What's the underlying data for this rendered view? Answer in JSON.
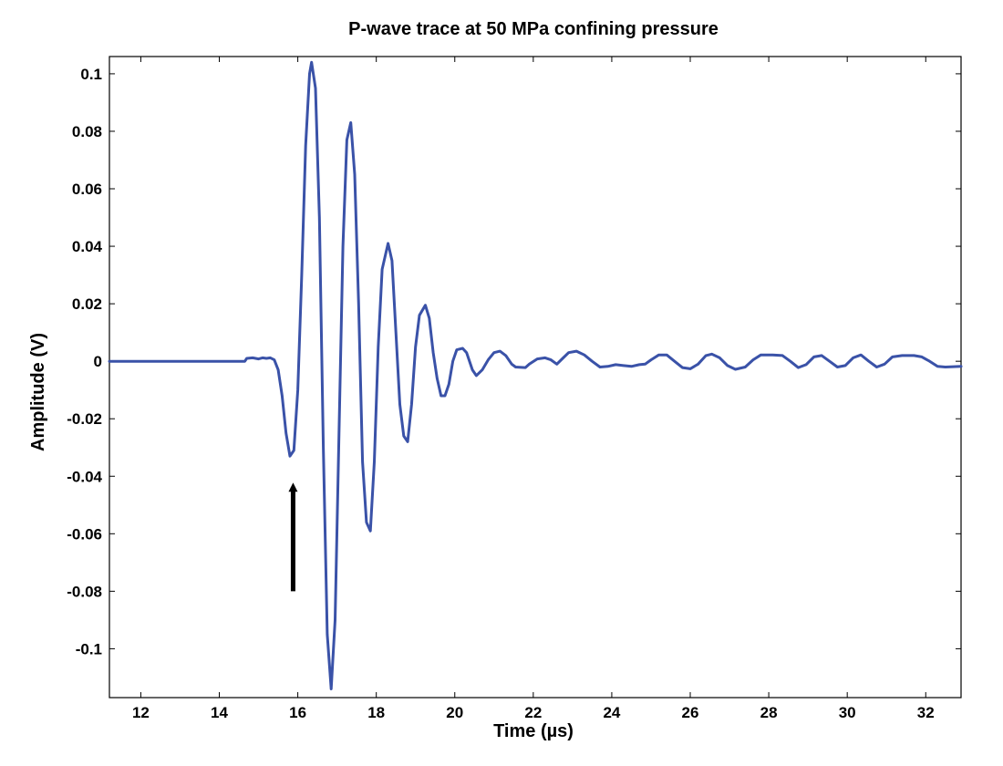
{
  "chart_data": {
    "type": "line",
    "title": "P-wave trace at 50 MPa confining pressure",
    "xlabel": "Time (µs)",
    "ylabel": "Amplitude (V)",
    "xlim": [
      11.2,
      32.9
    ],
    "ylim": [
      -0.117,
      0.106
    ],
    "xticks": [
      12,
      14,
      16,
      18,
      20,
      22,
      24,
      26,
      28,
      30,
      32
    ],
    "yticks": [
      0.1,
      0.08,
      0.06,
      0.04,
      0.02,
      0,
      -0.02,
      -0.04,
      -0.06,
      -0.08,
      -0.1
    ],
    "xtick_labels": [
      "12",
      "14",
      "16",
      "18",
      "20",
      "22",
      "24",
      "26",
      "28",
      "30",
      "32"
    ],
    "ytick_labels": [
      "0.1",
      "0.08",
      "0.06",
      "0.04",
      "0.02",
      "0",
      "-0.02",
      "-0.04",
      "-0.06",
      "-0.08",
      "-0.1"
    ],
    "grid": false,
    "series": [
      {
        "name": "P-wave trace",
        "color": "#3a52a8",
        "points": [
          [
            11.2,
            0
          ],
          [
            14.65,
            0
          ],
          [
            14.7,
            0.001
          ],
          [
            14.85,
            0.0012
          ],
          [
            15.0,
            0.0008
          ],
          [
            15.1,
            0.0012
          ],
          [
            15.2,
            0.001
          ],
          [
            15.3,
            0.0012
          ],
          [
            15.4,
            0.0005
          ],
          [
            15.5,
            -0.003
          ],
          [
            15.6,
            -0.012
          ],
          [
            15.7,
            -0.025
          ],
          [
            15.8,
            -0.033
          ],
          [
            15.9,
            -0.031
          ],
          [
            16.0,
            -0.01
          ],
          [
            16.1,
            0.03
          ],
          [
            16.2,
            0.075
          ],
          [
            16.3,
            0.1
          ],
          [
            16.35,
            0.104
          ],
          [
            16.45,
            0.095
          ],
          [
            16.55,
            0.05
          ],
          [
            16.65,
            -0.03
          ],
          [
            16.75,
            -0.095
          ],
          [
            16.85,
            -0.114
          ],
          [
            16.95,
            -0.09
          ],
          [
            17.05,
            -0.025
          ],
          [
            17.15,
            0.04
          ],
          [
            17.25,
            0.077
          ],
          [
            17.35,
            0.083
          ],
          [
            17.45,
            0.065
          ],
          [
            17.55,
            0.02
          ],
          [
            17.65,
            -0.035
          ],
          [
            17.75,
            -0.056
          ],
          [
            17.85,
            -0.059
          ],
          [
            17.95,
            -0.035
          ],
          [
            18.05,
            0.005
          ],
          [
            18.15,
            0.032
          ],
          [
            18.3,
            0.041
          ],
          [
            18.4,
            0.035
          ],
          [
            18.5,
            0.01
          ],
          [
            18.6,
            -0.015
          ],
          [
            18.7,
            -0.026
          ],
          [
            18.8,
            -0.028
          ],
          [
            18.9,
            -0.015
          ],
          [
            19.0,
            0.005
          ],
          [
            19.1,
            0.016
          ],
          [
            19.25,
            0.0195
          ],
          [
            19.35,
            0.015
          ],
          [
            19.45,
            0.003
          ],
          [
            19.55,
            -0.006
          ],
          [
            19.65,
            -0.012
          ],
          [
            19.75,
            -0.012
          ],
          [
            19.85,
            -0.008
          ],
          [
            19.95,
            0.0
          ],
          [
            20.05,
            0.004
          ],
          [
            20.2,
            0.0045
          ],
          [
            20.3,
            0.003
          ],
          [
            20.45,
            -0.003
          ],
          [
            20.55,
            -0.005
          ],
          [
            20.7,
            -0.003
          ],
          [
            20.85,
            0.0005
          ],
          [
            21.0,
            0.003
          ],
          [
            21.15,
            0.0035
          ],
          [
            21.3,
            0.002
          ],
          [
            21.45,
            -0.001
          ],
          [
            21.55,
            -0.002
          ],
          [
            21.8,
            -0.0022
          ],
          [
            21.9,
            -0.001
          ],
          [
            22.1,
            0.0008
          ],
          [
            22.3,
            0.0012
          ],
          [
            22.45,
            0.0005
          ],
          [
            22.6,
            -0.001
          ],
          [
            22.75,
            0.001
          ],
          [
            22.9,
            0.003
          ],
          [
            23.1,
            0.0035
          ],
          [
            23.3,
            0.0022
          ],
          [
            23.5,
            0.0
          ],
          [
            23.7,
            -0.002
          ],
          [
            23.9,
            -0.0018
          ],
          [
            24.1,
            -0.0012
          ],
          [
            24.3,
            -0.0015
          ],
          [
            24.5,
            -0.0018
          ],
          [
            24.7,
            -0.0012
          ],
          [
            24.85,
            -0.001
          ],
          [
            25.0,
            0.0005
          ],
          [
            25.2,
            0.0022
          ],
          [
            25.4,
            0.0022
          ],
          [
            25.6,
            0.0
          ],
          [
            25.8,
            -0.0022
          ],
          [
            26.0,
            -0.0026
          ],
          [
            26.2,
            -0.001
          ],
          [
            26.4,
            0.002
          ],
          [
            26.55,
            0.0025
          ],
          [
            26.75,
            0.0012
          ],
          [
            26.95,
            -0.0015
          ],
          [
            27.15,
            -0.0028
          ],
          [
            27.4,
            -0.002
          ],
          [
            27.6,
            0.0005
          ],
          [
            27.8,
            0.0022
          ],
          [
            28.1,
            0.0022
          ],
          [
            28.35,
            0.002
          ],
          [
            28.55,
            0.0
          ],
          [
            28.75,
            -0.0022
          ],
          [
            28.95,
            -0.0012
          ],
          [
            29.15,
            0.0015
          ],
          [
            29.35,
            0.002
          ],
          [
            29.55,
            0.0
          ],
          [
            29.75,
            -0.002
          ],
          [
            29.95,
            -0.0015
          ],
          [
            30.15,
            0.0012
          ],
          [
            30.35,
            0.0022
          ],
          [
            30.55,
            0.0
          ],
          [
            30.75,
            -0.002
          ],
          [
            30.95,
            -0.001
          ],
          [
            31.15,
            0.0015
          ],
          [
            31.4,
            0.002
          ],
          [
            31.7,
            0.002
          ],
          [
            31.9,
            0.0015
          ],
          [
            32.1,
            0.0
          ],
          [
            32.3,
            -0.0018
          ],
          [
            32.5,
            -0.002
          ],
          [
            32.9,
            -0.0018
          ]
        ]
      }
    ],
    "annotations": [
      {
        "type": "arrow",
        "from": [
          15.88,
          -0.08
        ],
        "to": [
          15.88,
          -0.04
        ],
        "color": "#000000"
      }
    ]
  }
}
